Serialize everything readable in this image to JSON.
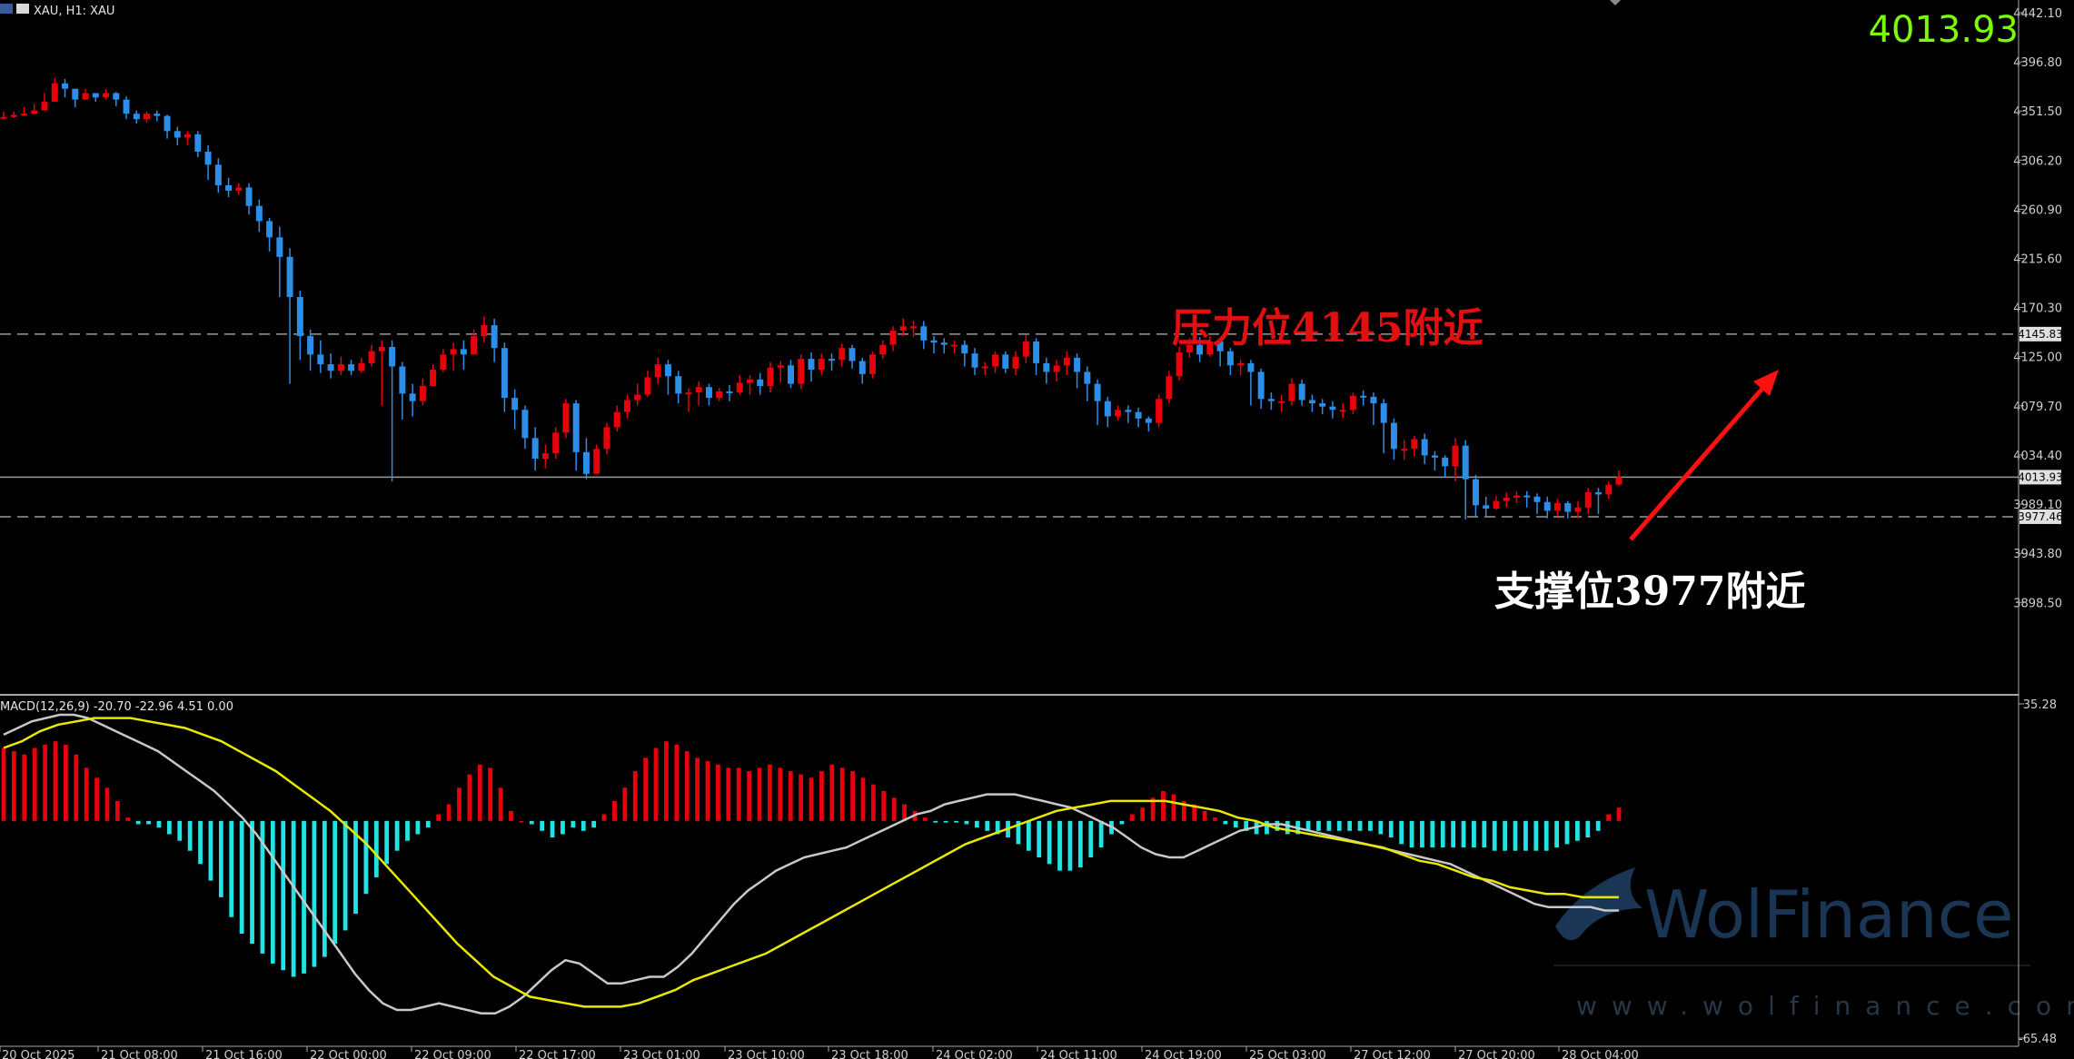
{
  "header": {
    "symbol_label": "XAU, H1: XAU",
    "current_price_big": "4013.93",
    "macd_label": "MACD(12,26,9) -20.70 -22.96 4.51 0.00"
  },
  "annotations": {
    "resistance": {
      "text": "压力位4145附近",
      "color": "#e01010",
      "price": 4145.83,
      "tag": "4145.83"
    },
    "support": {
      "text": "支撑位3977附近",
      "color": "#ffffff",
      "price": 3977.46,
      "tag": "3977.46"
    },
    "current": {
      "price": 4013.93,
      "tag": "4013.93"
    }
  },
  "watermark": {
    "brand": "WolFinance",
    "url": "www.wolfinance.com"
  },
  "colors": {
    "up": "#e8000b",
    "down": "#2c8ee8",
    "hist_pos": "#e8000b",
    "hist_neg": "#22e3e3",
    "macd": "#c8c8c8",
    "signal": "#e8e800",
    "grid": "#9a9a9a",
    "axis_text": "#cfcfcf",
    "big_price": "#7CFC00"
  },
  "chart_data": [
    {
      "type": "candlestick",
      "ylim": [
        3853.5,
        4442.1
      ],
      "yticks": [
        "4442.10",
        "4396.80",
        "4351.50",
        "4306.20",
        "4260.90",
        "4215.60",
        "4170.30",
        "4125.00",
        "4079.70",
        "4034.40",
        "3989.10",
        "3943.80",
        "3898.50"
      ],
      "xticks": [
        "20 Oct 2025",
        "21 Oct 08:00",
        "21 Oct 16:00",
        "22 Oct 00:00",
        "22 Oct 09:00",
        "22 Oct 17:00",
        "23 Oct 01:00",
        "23 Oct 10:00",
        "23 Oct 18:00",
        "24 Oct 02:00",
        "24 Oct 11:00",
        "24 Oct 19:00",
        "25 Oct 03:00",
        "27 Oct 12:00",
        "27 Oct 20:00",
        "28 Oct 04:00"
      ],
      "closes": [
        4346,
        4348,
        4349,
        4352,
        4360,
        4377,
        4372,
        4362,
        4368,
        4364,
        4368,
        4362,
        4349,
        4344,
        4349,
        4347,
        4333,
        4327,
        4330,
        4314,
        4302,
        4283,
        4278,
        4281,
        4264,
        4250,
        4235,
        4217,
        4180,
        4144,
        4127,
        4118,
        4112,
        4118,
        4112,
        4119,
        4130,
        4134,
        4116,
        4091,
        4084,
        4098,
        4113,
        4127,
        4132,
        4127,
        4144,
        4154,
        4133,
        4087,
        4076,
        4050,
        4031,
        4036,
        4055,
        4082,
        4037,
        4017,
        4040,
        4060,
        4074,
        4085,
        4090,
        4106,
        4118,
        4107,
        4091,
        4092,
        4097,
        4087,
        4093,
        4092,
        4101,
        4104,
        4098,
        4115,
        4117,
        4100,
        4123,
        4113,
        4123,
        4122,
        4133,
        4121,
        4109,
        4127,
        4136,
        4149,
        4153,
        4153,
        4140,
        4138,
        4136,
        4136,
        4128,
        4115,
        4116,
        4127,
        4114,
        4125,
        4139,
        4119,
        4111,
        4117,
        4124,
        4111,
        4100,
        4084,
        4070,
        4076,
        4074,
        4068,
        4064,
        4086,
        4107,
        4129,
        4136,
        4127,
        4139,
        4130,
        4117,
        4119,
        4111,
        4086,
        4084,
        4084,
        4100,
        4085,
        4082,
        4079,
        4076,
        4076,
        4089,
        4088,
        4082,
        4064,
        4040,
        4040,
        4049,
        4034,
        4032,
        4024,
        4043,
        4012,
        3988,
        3985,
        3992,
        3995,
        3997,
        3996,
        3991,
        3983,
        3990,
        3982,
        3986,
        4000,
        3998,
        4007,
        4014
      ],
      "highs": [
        4351,
        4351,
        4355,
        4358,
        4368,
        4382,
        4381,
        4370,
        4372,
        4368,
        4372,
        4369,
        4365,
        4352,
        4351,
        4352,
        4348,
        4337,
        4333,
        4333,
        4320,
        4308,
        4290,
        4285,
        4285,
        4270,
        4253,
        4245,
        4225,
        4186,
        4150,
        4140,
        4128,
        4125,
        4122,
        4124,
        4136,
        4140,
        4140,
        4120,
        4100,
        4105,
        4118,
        4132,
        4138,
        4140,
        4150,
        4162,
        4160,
        4138,
        4095,
        4080,
        4060,
        4044,
        4060,
        4086,
        4085,
        4050,
        4044,
        4064,
        4080,
        4090,
        4100,
        4112,
        4124,
        4122,
        4112,
        4096,
        4102,
        4100,
        4096,
        4099,
        4108,
        4108,
        4110,
        4120,
        4121,
        4122,
        4127,
        4129,
        4128,
        4128,
        4137,
        4136,
        4124,
        4130,
        4140,
        4153,
        4160,
        4158,
        4158,
        4144,
        4142,
        4140,
        4140,
        4133,
        4120,
        4130,
        4130,
        4130,
        4145,
        4142,
        4124,
        4122,
        4130,
        4128,
        4116,
        4104,
        4088,
        4080,
        4080,
        4078,
        4070,
        4090,
        4112,
        4134,
        4142,
        4143,
        4144,
        4140,
        4133,
        4122,
        4122,
        4114,
        4092,
        4090,
        4105,
        4104,
        4090,
        4086,
        4084,
        4082,
        4092,
        4094,
        4092,
        4086,
        4068,
        4048,
        4052,
        4054,
        4038,
        4034,
        4050,
        4048,
        4016,
        3996,
        3997,
        4000,
        4001,
        4001,
        3999,
        3996,
        3994,
        3992,
        3992,
        4004,
        4004,
        4010,
        4020
      ],
      "lows": [
        4344,
        4345,
        4347,
        4349,
        4354,
        4368,
        4364,
        4355,
        4362,
        4360,
        4362,
        4356,
        4344,
        4340,
        4341,
        4342,
        4326,
        4320,
        4320,
        4309,
        4288,
        4276,
        4272,
        4274,
        4256,
        4240,
        4222,
        4180,
        4100,
        4122,
        4112,
        4110,
        4105,
        4108,
        4108,
        4110,
        4116,
        4080,
        4010,
        4067,
        4070,
        4080,
        4100,
        4111,
        4112,
        4113,
        4128,
        4138,
        4120,
        4074,
        4058,
        4040,
        4020,
        4022,
        4031,
        4050,
        4020,
        4012,
        4024,
        4035,
        4056,
        4068,
        4080,
        4088,
        4100,
        4090,
        4082,
        4074,
        4080,
        4080,
        4084,
        4084,
        4090,
        4090,
        4090,
        4092,
        4101,
        4096,
        4095,
        4102,
        4108,
        4112,
        4116,
        4114,
        4100,
        4105,
        4123,
        4130,
        4144,
        4143,
        4132,
        4128,
        4128,
        4128,
        4116,
        4108,
        4108,
        4110,
        4110,
        4108,
        4119,
        4108,
        4100,
        4102,
        4108,
        4096,
        4084,
        4062,
        4060,
        4066,
        4064,
        4060,
        4056,
        4060,
        4082,
        4103,
        4124,
        4120,
        4125,
        4116,
        4108,
        4108,
        4080,
        4077,
        4076,
        4074,
        4080,
        4080,
        4074,
        4072,
        4068,
        4068,
        4072,
        4080,
        4062,
        4036,
        4030,
        4030,
        4033,
        4026,
        4020,
        4014,
        4010,
        3975,
        3978,
        3978,
        3984,
        3986,
        3990,
        3986,
        3980,
        3976,
        3978,
        3976,
        3976,
        3980,
        3980,
        3994,
        4006
      ]
    },
    {
      "type": "macd",
      "params": "12,26,9",
      "ylim": [
        -65.48,
        35.28
      ],
      "yticks": [
        "35.28",
        "-65.48"
      ],
      "zero_line": 0,
      "histogram": [
        22,
        21,
        20,
        22,
        23,
        24,
        23,
        20,
        16,
        13,
        10,
        6,
        1,
        -1,
        -1,
        -2,
        -4,
        -6,
        -9,
        -13,
        -18,
        -23,
        -29,
        -34,
        -37,
        -40,
        -43,
        -45,
        -47,
        -46,
        -44,
        -41,
        -37,
        -33,
        -28,
        -22,
        -17,
        -13,
        -9,
        -6,
        -4,
        -2,
        2,
        5,
        10,
        14,
        17,
        16,
        10,
        3,
        0,
        -1,
        -3,
        -5,
        -4,
        -2,
        -3,
        -2,
        2,
        6,
        10,
        15,
        19,
        22,
        24,
        23,
        21,
        19,
        18,
        17,
        16,
        16,
        15,
        16,
        17,
        16,
        15,
        14,
        13,
        15,
        17,
        16,
        15,
        13,
        11,
        9,
        7,
        5,
        3,
        1,
        -0.5,
        -0.5,
        -0.5,
        -1,
        -2,
        -3,
        -4,
        -5,
        -7,
        -9,
        -11,
        -13,
        -15,
        -15,
        -14,
        -11,
        -8,
        -4,
        -1,
        2,
        4,
        7,
        9,
        8,
        6,
        5,
        3,
        1,
        -1,
        -2,
        -3,
        -4,
        -4,
        -3,
        -4,
        -4,
        -3,
        -3,
        -3,
        -3,
        -3,
        -3,
        -3,
        -4,
        -5,
        -7,
        -8,
        -8,
        -8,
        -8,
        -8,
        -8,
        -8,
        -8,
        -9,
        -9,
        -9,
        -9,
        -9,
        -9,
        -8,
        -7,
        -6,
        -5,
        -3,
        2,
        4
      ],
      "macd_line": [
        26,
        28,
        30,
        31,
        32,
        32,
        31,
        29,
        27,
        25,
        23,
        21,
        18,
        15,
        12,
        9,
        5,
        1,
        -4,
        -10,
        -16,
        -22,
        -28,
        -34,
        -40,
        -46,
        -51,
        -55,
        -57,
        -57,
        -56,
        -55,
        -56,
        -57,
        -58,
        -58,
        -56,
        -53,
        -49,
        -45,
        -42,
        -43,
        -46,
        -49,
        -49,
        -48,
        -47,
        -47,
        -44,
        -40,
        -35,
        -30,
        -25,
        -21,
        -18,
        -15,
        -13,
        -11,
        -10,
        -9,
        -8,
        -6,
        -4,
        -2,
        0,
        2,
        3,
        5,
        6,
        7,
        8,
        8,
        8,
        7,
        6,
        5,
        4,
        2,
        0,
        -2,
        -5,
        -8,
        -10,
        -11,
        -11,
        -9,
        -7,
        -5,
        -3,
        -2,
        -1,
        -1,
        -2,
        -3,
        -4,
        -5,
        -6,
        -7,
        -8,
        -9,
        -10,
        -11,
        -12,
        -13,
        -15,
        -17,
        -19,
        -21,
        -23,
        -25,
        -26,
        -26,
        -26,
        -26,
        -27,
        -27
      ],
      "signal_line": [
        22,
        24,
        27,
        29,
        30,
        31,
        31,
        31,
        30,
        29,
        28,
        26,
        24,
        21,
        18,
        15,
        11,
        7,
        3,
        -2,
        -7,
        -13,
        -19,
        -25,
        -31,
        -37,
        -42,
        -47,
        -50,
        -53,
        -54,
        -55,
        -56,
        -56,
        -56,
        -55,
        -53,
        -51,
        -48,
        -46,
        -44,
        -42,
        -40,
        -37,
        -34,
        -31,
        -28,
        -25,
        -22,
        -19,
        -16,
        -13,
        -10,
        -7,
        -5,
        -3,
        -1,
        1,
        3,
        4,
        5,
        6,
        6,
        6,
        6,
        5,
        4,
        3,
        1,
        0,
        -2,
        -3,
        -4,
        -5,
        -6,
        -7,
        -8,
        -10,
        -12,
        -13,
        -15,
        -17,
        -18,
        -20,
        -21,
        -22,
        -22,
        -23,
        -23,
        -23
      ]
    }
  ]
}
